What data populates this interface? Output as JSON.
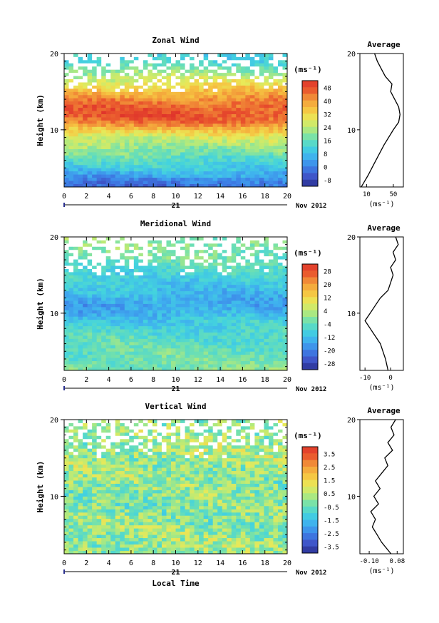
{
  "colors": {
    "bar_palette": [
      "#2a2f8f",
      "#3f55c8",
      "#3d82e8",
      "#3fb0ef",
      "#43d3de",
      "#6fe0b0",
      "#b5ea7a",
      "#e9e958",
      "#f6c341",
      "#f39c3a",
      "#ea5a2e",
      "#e0352b"
    ]
  },
  "chart_data": [
    {
      "type": "heatmap",
      "title": "Zonal Wind",
      "ylabel": "Height (km)",
      "xlabel": "",
      "ylim": [
        2.5,
        20
      ],
      "xlim": [
        0,
        20
      ],
      "y_ticks": [
        "20",
        "10"
      ],
      "x_ticks": [
        "0",
        "2",
        "4",
        "6",
        "8",
        "10",
        "12",
        "14",
        "16",
        "18",
        "20"
      ],
      "day_label": "21",
      "date_label": "Nov 2012",
      "colorbar_unit": "(ms⁻¹)",
      "colorbar_ticks": [
        "48",
        "40",
        "32",
        "24",
        "16",
        "8",
        "0",
        "-8"
      ],
      "height_profile_km": [
        3,
        5,
        7,
        9,
        10,
        11,
        12,
        13,
        14,
        15,
        16,
        17,
        18,
        19
      ],
      "zonal_wind_ms": [
        -2,
        10,
        18,
        26,
        34,
        44,
        48,
        46,
        42,
        36,
        30,
        24,
        18,
        12
      ],
      "average_panel": {
        "title": "Average",
        "xlabel": "(ms⁻¹)",
        "x_ticks": [
          "10",
          "50"
        ],
        "y_ticks": [
          "20",
          "10"
        ],
        "xlim": [
          0,
          65
        ],
        "profile": [
          {
            "h": 2.5,
            "v": 2
          },
          {
            "h": 4,
            "v": 12
          },
          {
            "h": 6,
            "v": 24
          },
          {
            "h": 8,
            "v": 36
          },
          {
            "h": 10,
            "v": 50
          },
          {
            "h": 11,
            "v": 58
          },
          {
            "h": 12,
            "v": 60
          },
          {
            "h": 13,
            "v": 58
          },
          {
            "h": 14,
            "v": 52
          },
          {
            "h": 15,
            "v": 46
          },
          {
            "h": 16,
            "v": 48
          },
          {
            "h": 17,
            "v": 38
          },
          {
            "h": 18,
            "v": 32
          },
          {
            "h": 19,
            "v": 26
          },
          {
            "h": 20,
            "v": 22
          }
        ]
      }
    },
    {
      "type": "heatmap",
      "title": "Meridional Wind",
      "ylabel": "Height (km)",
      "xlabel": "",
      "ylim": [
        2.5,
        20
      ],
      "xlim": [
        0,
        20
      ],
      "y_ticks": [
        "20",
        "10"
      ],
      "x_ticks": [
        "0",
        "2",
        "4",
        "6",
        "8",
        "10",
        "12",
        "14",
        "16",
        "18",
        "20"
      ],
      "day_label": "21",
      "date_label": "Nov 2012",
      "colorbar_unit": "(ms⁻¹)",
      "colorbar_ticks": [
        "28",
        "20",
        "12",
        "4",
        "-4",
        "-12",
        "-20",
        "-28"
      ],
      "height_profile_km": [
        3,
        5,
        7,
        9,
        10,
        11,
        13,
        15,
        17,
        19
      ],
      "meridional_wind_ms": [
        -2,
        -4,
        -6,
        -10,
        -14,
        -16,
        -12,
        -8,
        -4,
        0
      ],
      "average_panel": {
        "title": "Average",
        "xlabel": "(ms⁻¹)",
        "x_ticks": [
          "-10",
          "0"
        ],
        "y_ticks": [
          "20",
          "10"
        ],
        "xlim": [
          -12,
          5
        ],
        "profile": [
          {
            "h": 2.5,
            "v": -1
          },
          {
            "h": 4,
            "v": -2
          },
          {
            "h": 5,
            "v": -3
          },
          {
            "h": 6,
            "v": -4
          },
          {
            "h": 7,
            "v": -6
          },
          {
            "h": 8,
            "v": -8
          },
          {
            "h": 9,
            "v": -10
          },
          {
            "h": 10,
            "v": -8
          },
          {
            "h": 11,
            "v": -6
          },
          {
            "h": 12,
            "v": -4
          },
          {
            "h": 13,
            "v": -1
          },
          {
            "h": 14,
            "v": 0
          },
          {
            "h": 15,
            "v": 1
          },
          {
            "h": 16,
            "v": 0
          },
          {
            "h": 17,
            "v": 2
          },
          {
            "h": 18,
            "v": 1
          },
          {
            "h": 19,
            "v": 3
          },
          {
            "h": 20,
            "v": 2
          }
        ]
      }
    },
    {
      "type": "heatmap",
      "title": "Vertical Wind",
      "ylabel": "Height (km)",
      "xlabel": "Local Time",
      "ylim": [
        2.5,
        20
      ],
      "xlim": [
        0,
        20
      ],
      "y_ticks": [
        "20",
        "10"
      ],
      "x_ticks": [
        "0",
        "2",
        "4",
        "6",
        "8",
        "10",
        "12",
        "14",
        "16",
        "18",
        "20"
      ],
      "day_label": "21",
      "date_label": "Nov 2012",
      "colorbar_unit": "(ms⁻¹)",
      "colorbar_ticks": [
        "3.5",
        "2.5",
        "1.5",
        "0.5",
        "-0.5",
        "-1.5",
        "-2.5",
        "-3.5"
      ],
      "height_profile_km": [
        3,
        6,
        9,
        12,
        15,
        18
      ],
      "vertical_wind_ms": [
        0.1,
        0.0,
        -0.1,
        0.0,
        0.2,
        0.1
      ],
      "average_panel": {
        "title": "Average",
        "xlabel": "(ms⁻¹)",
        "x_ticks": [
          "-0.10",
          "0.08"
        ],
        "y_ticks": [
          "20",
          "10"
        ],
        "xlim": [
          -0.16,
          0.12
        ],
        "profile": [
          {
            "h": 2.5,
            "v": 0.04
          },
          {
            "h": 4,
            "v": -0.02
          },
          {
            "h": 5,
            "v": -0.05
          },
          {
            "h": 6,
            "v": -0.08
          },
          {
            "h": 7,
            "v": -0.06
          },
          {
            "h": 8,
            "v": -0.09
          },
          {
            "h": 9,
            "v": -0.04
          },
          {
            "h": 10,
            "v": -0.07
          },
          {
            "h": 11,
            "v": -0.03
          },
          {
            "h": 12,
            "v": -0.06
          },
          {
            "h": 13,
            "v": -0.02
          },
          {
            "h": 14,
            "v": 0.02
          },
          {
            "h": 15,
            "v": 0.0
          },
          {
            "h": 16,
            "v": 0.05
          },
          {
            "h": 17,
            "v": 0.02
          },
          {
            "h": 18,
            "v": 0.06
          },
          {
            "h": 19,
            "v": 0.04
          },
          {
            "h": 20,
            "v": 0.07
          }
        ]
      }
    }
  ]
}
